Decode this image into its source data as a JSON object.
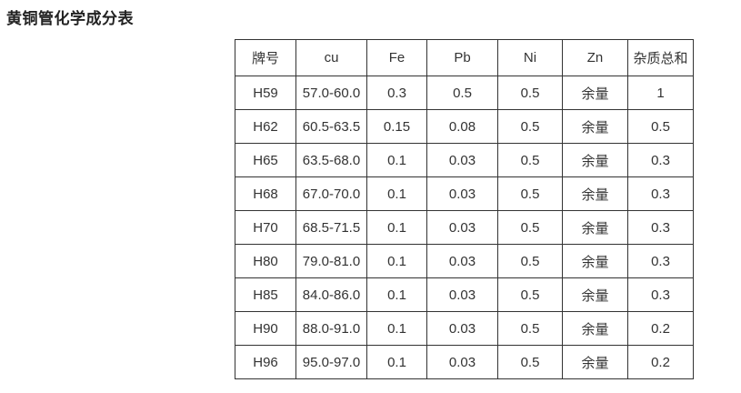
{
  "page": {
    "title": "黄铜管化学成分表"
  },
  "table": {
    "columns": [
      "牌号",
      "cu",
      "Fe",
      "Pb",
      "Ni",
      "Zn",
      "杂质总和"
    ],
    "rows": [
      [
        "H59",
        "57.0-60.0",
        "0.3",
        "0.5",
        "0.5",
        "余量",
        "1"
      ],
      [
        "H62",
        "60.5-63.5",
        "0.15",
        "0.08",
        "0.5",
        "余量",
        "0.5"
      ],
      [
        "H65",
        "63.5-68.0",
        "0.1",
        "0.03",
        "0.5",
        "余量",
        "0.3"
      ],
      [
        "H68",
        "67.0-70.0",
        "0.1",
        "0.03",
        "0.5",
        "余量",
        "0.3"
      ],
      [
        "H70",
        "68.5-71.5",
        "0.1",
        "0.03",
        "0.5",
        "余量",
        "0.3"
      ],
      [
        "H80",
        "79.0-81.0",
        "0.1",
        "0.03",
        "0.5",
        "余量",
        "0.3"
      ],
      [
        "H85",
        "84.0-86.0",
        "0.1",
        "0.03",
        "0.5",
        "余量",
        "0.3"
      ],
      [
        "H90",
        "88.0-91.0",
        "0.1",
        "0.03",
        "0.5",
        "余量",
        "0.2"
      ],
      [
        "H96",
        "95.0-97.0",
        "0.1",
        "0.03",
        "0.5",
        "余量",
        "0.2"
      ]
    ]
  },
  "colors": {
    "text": "#333333",
    "border": "#333333",
    "title": "#222222",
    "background": "#ffffff"
  }
}
